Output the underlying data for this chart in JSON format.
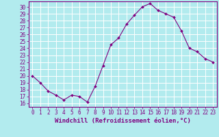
{
  "x": [
    0,
    1,
    2,
    3,
    4,
    5,
    6,
    7,
    8,
    9,
    10,
    11,
    12,
    13,
    14,
    15,
    16,
    17,
    18,
    19,
    20,
    21,
    22,
    23
  ],
  "y": [
    20.0,
    19.0,
    17.8,
    17.2,
    16.5,
    17.2,
    17.0,
    16.2,
    18.5,
    21.5,
    24.5,
    25.5,
    27.5,
    28.8,
    30.0,
    30.5,
    29.5,
    29.0,
    28.5,
    26.5,
    24.0,
    23.5,
    22.5,
    22.0
  ],
  "line_color": "#800080",
  "marker": "D",
  "marker_size": 2.0,
  "bg_color": "#b2ebee",
  "grid_color": "#aadddd",
  "xlabel": "Windchill (Refroidissement éolien,°C)",
  "ylabel_ticks": [
    16,
    17,
    18,
    19,
    20,
    21,
    22,
    23,
    24,
    25,
    26,
    27,
    28,
    29,
    30
  ],
  "xlim": [
    -0.5,
    23.5
  ],
  "ylim": [
    15.5,
    30.8
  ],
  "tick_color": "#800080",
  "label_fontsize": 6.5,
  "tick_fontsize": 5.5
}
